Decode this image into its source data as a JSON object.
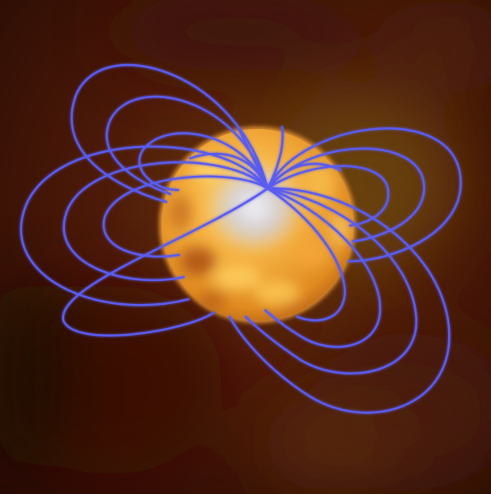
{
  "illustration": {
    "subject": "star-with-magnetic-field-loops",
    "colors": {
      "background_dark": "#2a0c04",
      "background_mid": "#5a1e0a",
      "background_glow": "#6a3a0c",
      "star_orange": "#f0a030",
      "star_yellow": "#ffd060",
      "star_spot_dark": "#b05010",
      "polar_glow": "#e8ecff",
      "field_line": "#5a5cf0",
      "field_line_glow": "#8a8cff"
    }
  }
}
